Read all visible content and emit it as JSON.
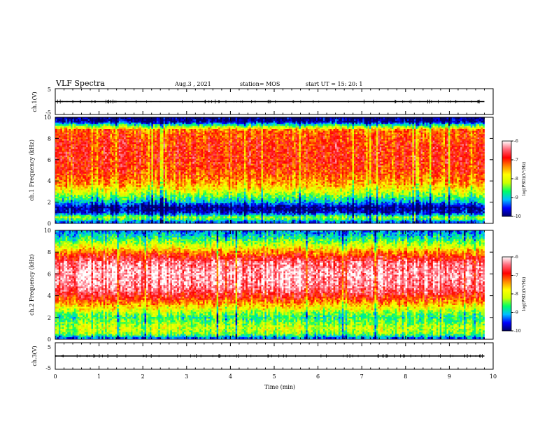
{
  "header": {
    "title": "VLF Spectra",
    "date": "Aug.3 , 2021",
    "station": "station= MOS",
    "start_ut": "start UT = 15: 20: 1"
  },
  "chart_data": [
    {
      "type": "line",
      "panel": "ch1-waveform",
      "ylabel": "ch.1(V)",
      "ylim": [
        -5,
        5
      ],
      "y_ticks": [
        "5",
        "-5"
      ],
      "xlim": [
        0,
        10
      ],
      "series": [
        {
          "x": [
            0,
            9.8
          ],
          "y": [
            0,
            0
          ]
        }
      ]
    },
    {
      "type": "heatmap",
      "panel": "ch1-spectrogram",
      "ylabel": "ch.1 Frequency (kHz)",
      "ylim": [
        0,
        10
      ],
      "y_ticks": [
        "0",
        "2",
        "4",
        "6",
        "8",
        "10"
      ],
      "xlim": [
        0,
        10
      ],
      "data_end_min": 9.8,
      "profile_khz": [
        0,
        0.5,
        1.0,
        1.5,
        2.0,
        2.5,
        3.0,
        3.5,
        4.0,
        5.0,
        6.0,
        7.0,
        8.0,
        8.8,
        9.2,
        9.6,
        10.0
      ],
      "profile_logpsd": [
        -9.6,
        -8.2,
        -9.7,
        -9.9,
        -9.0,
        -8.5,
        -8.0,
        -7.6,
        -7.3,
        -7.0,
        -6.9,
        -6.9,
        -7.0,
        -7.2,
        -8.4,
        -9.8,
        -10.0
      ],
      "colorbar": {
        "label": "log(PSD)(V²/Hz)",
        "ticks": [
          "-6",
          "-7",
          "-8",
          "-9",
          "-10"
        ],
        "range": [
          -10,
          -6
        ]
      }
    },
    {
      "type": "heatmap",
      "panel": "ch2-spectrogram",
      "ylabel": "ch.2 Frequency (kHz)",
      "ylim": [
        0,
        10
      ],
      "y_ticks": [
        "0",
        "2",
        "4",
        "6",
        "8",
        "10"
      ],
      "xlim": [
        0,
        10
      ],
      "data_end_min": 9.8,
      "profile_khz": [
        0,
        0.5,
        1.0,
        1.5,
        2.0,
        2.5,
        3.0,
        3.5,
        4.0,
        4.5,
        5.0,
        6.0,
        7.0,
        7.5,
        8.0,
        8.5,
        9.0,
        9.5,
        10.0
      ],
      "profile_logpsd": [
        -9.5,
        -8.3,
        -8.1,
        -8.4,
        -8.7,
        -8.2,
        -7.7,
        -7.2,
        -6.8,
        -6.5,
        -6.3,
        -6.2,
        -6.4,
        -6.8,
        -7.3,
        -7.9,
        -8.4,
        -8.9,
        -9.3
      ],
      "colorbar": {
        "label": "log(PSD)(V²/Hz)",
        "ticks": [
          "-6",
          "-7",
          "-8",
          "-9",
          "-10"
        ],
        "range": [
          -10,
          -6
        ]
      }
    },
    {
      "type": "line",
      "panel": "ch3-waveform",
      "ylabel": "ch.3(V)",
      "ylim": [
        -5,
        5
      ],
      "y_ticks": [
        "5",
        "-5"
      ],
      "xlim": [
        0,
        10
      ],
      "series": [
        {
          "x": [
            0,
            9.8
          ],
          "y": [
            0,
            0
          ]
        }
      ]
    }
  ],
  "x_axis": {
    "label": "Time (min)",
    "ticks": [
      "0",
      "1",
      "2",
      "3",
      "4",
      "5",
      "6",
      "7",
      "8",
      "9",
      "10"
    ]
  },
  "colors": {
    "colormap": [
      "#000066",
      "#0000ff",
      "#00bfff",
      "#00ff66",
      "#ccff00",
      "#ffff00",
      "#ff8800",
      "#ff0000",
      "#ff6677",
      "#ffffff"
    ]
  }
}
